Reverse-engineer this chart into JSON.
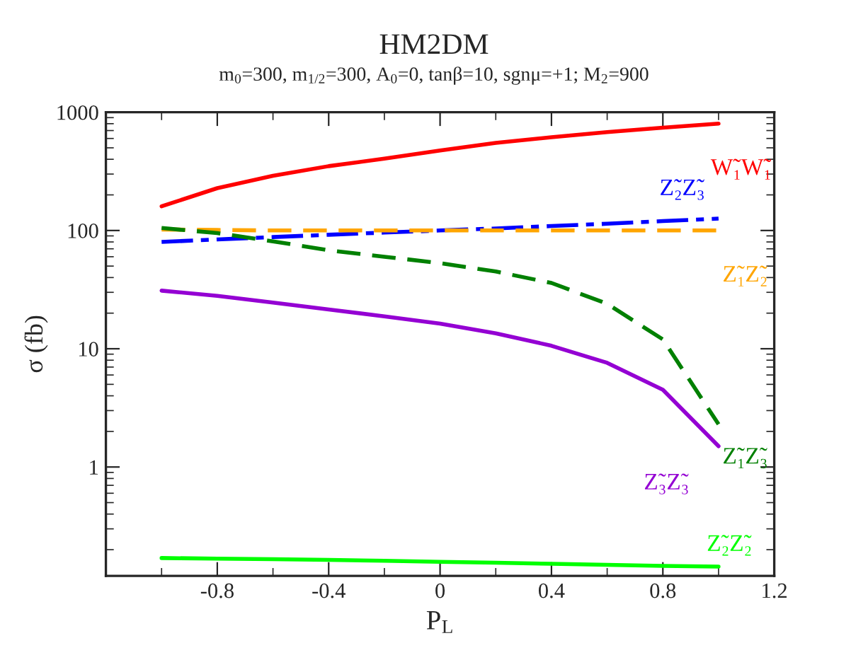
{
  "chart_data": {
    "type": "line",
    "title": "HM2DM",
    "subtitle": "m$_{0}$=300, m$_{1/2}$=300, A$_{0}$=0, tanβ=10, sgnμ=+1; M$_{2}$=900",
    "xlabel": "P$_{L}$",
    "ylabel": "σ (fb)",
    "x": [
      -1,
      -0.8,
      -0.6,
      -0.4,
      -0.2,
      0,
      0.2,
      0.4,
      0.6,
      0.8,
      1
    ],
    "series": [
      {
        "name": "W̃₁W̃₁",
        "color": "#ff0000",
        "line_style": "solid",
        "values": [
          160,
          228,
          290,
          350,
          405,
          475,
          550,
          615,
          680,
          740,
          800
        ]
      },
      {
        "name": "Z̃₂Z̃₃",
        "color": "#0000ff",
        "line_style": "dashdot",
        "values": [
          80,
          84,
          88,
          92,
          96,
          100,
          104,
          109,
          114,
          120,
          126
        ]
      },
      {
        "name": "Z̃₁Z̃₂",
        "color": "#ffa500",
        "line_style": "dashed",
        "values": [
          102,
          101,
          100,
          100,
          100,
          100,
          100,
          100,
          100,
          100,
          100
        ]
      },
      {
        "name": "Z̃₁Z̃₃",
        "color": "#008000",
        "line_style": "dashed",
        "values": [
          105,
          95,
          81,
          68,
          60,
          53,
          45,
          36,
          24,
          12,
          2.3
        ]
      },
      {
        "name": "Z̃₃Z̃₃",
        "color": "#9400d3",
        "line_style": "solid",
        "values": [
          31,
          28,
          24.6,
          21.5,
          18.8,
          16.3,
          13.5,
          10.6,
          7.6,
          4.5,
          1.5
        ]
      },
      {
        "name": "Z̃₂Z̃₂",
        "color": "#00ff00",
        "line_style": "solid",
        "values": [
          0.17,
          0.168,
          0.166,
          0.164,
          0.161,
          0.158,
          0.155,
          0.152,
          0.149,
          0.146,
          0.144
        ]
      }
    ],
    "log": "y",
    "grid": false,
    "legend": false,
    "xlim": [
      -1.2,
      1.2
    ],
    "xticks": [
      {
        "value": -1.2,
        "label": null
      },
      -0.8,
      -0.4,
      0,
      0.4,
      0.8,
      1.2
    ],
    "ylim": [
      0.12,
      1000
    ],
    "yticks": [
      1,
      10,
      100,
      1000
    ]
  }
}
